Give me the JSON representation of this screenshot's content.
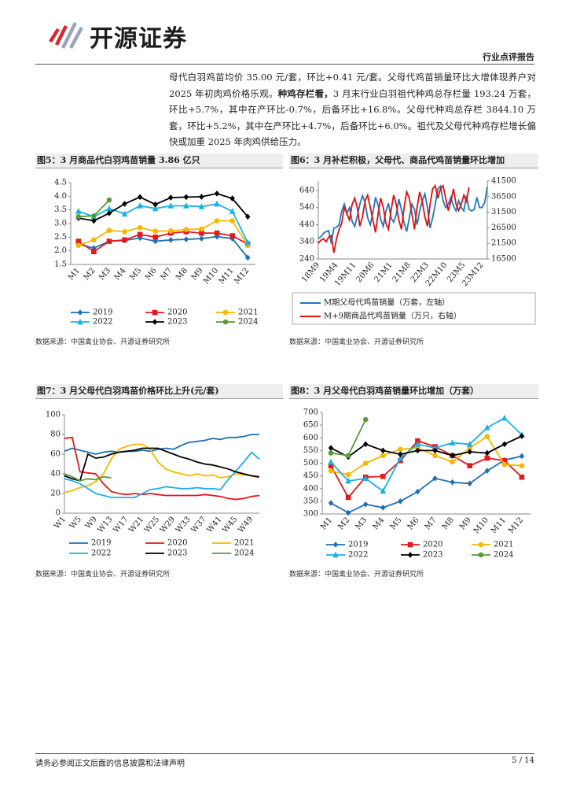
{
  "header": {
    "logo": "开源证券",
    "report_type": "行业点评报告"
  },
  "body": {
    "paragraph": [
      "母代白羽鸡苗均价 35.00 元/套，环比+0.41 元/套。父母代鸡苗销量环比大增体现养户对 2025 年初肉鸡价格乐观。",
      "种鸡存栏看，",
      "3 月末行业白羽祖代种鸡总存栏量 193.24 万套，环比+5.7%，其中在产环比-0.7%，后备环比+16.8%。父母代种鸡总存栏 3844.10 万套，环比+5.2%，其中在产环比+4.7%，后备环比+6.0%。祖代及父母代种鸡存栏增长偏快或加重 2025 年肉鸡供给压力。"
    ]
  },
  "chart_data": [
    {
      "type": "line",
      "title": "图5：3 月商品代白羽鸡苗销量 3.86 亿只",
      "source": "数据来源：中国禽业协会、开源证券研究所",
      "categories": [
        "M1",
        "M2",
        "M3",
        "M4",
        "M5",
        "M6",
        "M7",
        "M8",
        "M9",
        "M10",
        "M11",
        "M12"
      ],
      "ylim": [
        1.5,
        4.5
      ],
      "yticks": [
        1.5,
        {
          "value": 2,
          "label": "2.0"
        },
        2.5,
        {
          "value": 3,
          "label": "3.0"
        },
        3.5,
        {
          "value": 4,
          "label": "4.0"
        },
        4.5
      ],
      "series": [
        {
          "name": "2019",
          "color": "#1f6fb5",
          "marker": "diamond",
          "values": [
            2.25,
            2.1,
            2.35,
            2.38,
            2.47,
            2.35,
            2.4,
            2.42,
            2.45,
            2.52,
            2.45,
            1.75
          ]
        },
        {
          "name": "2020",
          "color": "#e31a1c",
          "marker": "square",
          "values": [
            2.35,
            1.97,
            2.35,
            2.4,
            2.6,
            2.5,
            2.65,
            2.7,
            2.65,
            2.65,
            2.55,
            2.25
          ]
        },
        {
          "name": "2021",
          "color": "#f5b800",
          "marker": "circle",
          "values": [
            2.2,
            2.4,
            2.75,
            2.7,
            2.85,
            2.72,
            2.73,
            2.78,
            2.8,
            3.1,
            3.1,
            2.2
          ]
        },
        {
          "name": "2022",
          "color": "#1bb0e8",
          "marker": "triangle",
          "values": [
            3.45,
            3.25,
            3.55,
            3.35,
            3.65,
            3.55,
            3.65,
            3.65,
            3.62,
            3.72,
            3.45,
            2.3
          ]
        },
        {
          "name": "2023",
          "color": "#000000",
          "marker": "diamond",
          "values": [
            3.2,
            3.1,
            3.38,
            3.72,
            3.97,
            3.7,
            3.95,
            3.97,
            3.98,
            4.1,
            3.92,
            3.25
          ]
        },
        {
          "name": "2024",
          "color": "#5a9a3a",
          "marker": "circle",
          "values": [
            3.25,
            3.28,
            3.86,
            null,
            null,
            null,
            null,
            null,
            null,
            null,
            null,
            null
          ]
        }
      ]
    },
    {
      "type": "line",
      "title": "图6：3 月补栏积极，父母代、商品代鸡苗销量环比增加",
      "source": "数据来源：中国禽业协会、开源证券研究所",
      "categories": [
        "18M9",
        null,
        null,
        null,
        null,
        null,
        null,
        "19M4",
        null,
        null,
        null,
        null,
        null,
        null,
        "19M11",
        null,
        null,
        null,
        null,
        null,
        null,
        "20M6",
        null,
        null,
        null,
        null,
        null,
        null,
        "21M1",
        null,
        null,
        null,
        null,
        null,
        null,
        "21M8",
        null,
        null,
        null,
        null,
        null,
        null,
        "22M3",
        null,
        null,
        null,
        null,
        null,
        null,
        "22M10",
        null,
        null,
        null,
        null,
        null,
        null,
        "23M5",
        null,
        null,
        null,
        null,
        null,
        null,
        "23M12",
        null,
        null
      ],
      "ylim": [
        240,
        695
      ],
      "yticks": [
        240,
        340,
        440,
        540,
        640
      ],
      "y2lim": [
        16500,
        41500
      ],
      "y2ticks": [
        16500,
        21500,
        26500,
        31500,
        36500,
        41500
      ],
      "series": [
        {
          "name": "M期父母代鸡苗销量（万套，左轴）",
          "color": "#1f78c1",
          "values": [
            360,
            370,
            390,
            400,
            405,
            330,
            420,
            425,
            440,
            520,
            560,
            505,
            540,
            460,
            430,
            490,
            560,
            610,
            570,
            480,
            440,
            510,
            600,
            555,
            470,
            430,
            520,
            565,
            480,
            455,
            500,
            590,
            525,
            450,
            400,
            480,
            560,
            530,
            440,
            520,
            580,
            620,
            540,
            420,
            480,
            560,
            650,
            665,
            580,
            540,
            560,
            600,
            550,
            520,
            580,
            540,
            520,
            610,
            530,
            520,
            530,
            600,
            540,
            540,
            570,
            660
          ]
        },
        {
          "name": "M+9期商品代鸡苗销量（万只，右轴）",
          "color": "#e01010",
          "axis": "y2",
          "values": [
            21500,
            22500,
            23000,
            22000,
            23500,
            24000,
            18500,
            23000,
            26000,
            28000,
            33000,
            31000,
            29000,
            34000,
            36000,
            33000,
            27000,
            30000,
            35000,
            37000,
            33000,
            29000,
            25000,
            31000,
            36000,
            33000,
            28000,
            26000,
            32000,
            37000,
            34000,
            29000,
            26000,
            33000,
            38000,
            36000,
            31000,
            26000,
            33000,
            38000,
            35000,
            30000,
            27000,
            34000,
            39000,
            40000,
            36000,
            39000,
            40000,
            36000,
            32000,
            35000,
            39000,
            34000,
            32000,
            34000,
            37000,
            35000,
            39500,
            null,
            null,
            null,
            null,
            null,
            null,
            null
          ]
        }
      ]
    },
    {
      "type": "line",
      "title": "图7：3 月父母代白羽鸡苗价格环比上升(元/套)",
      "source": "数据来源：中国禽业协会、开源证券研究所",
      "categories": [
        "W1",
        null,
        "W5",
        null,
        "W9",
        null,
        "W13",
        null,
        "W17",
        null,
        "W21",
        null,
        "W25",
        null,
        "W29",
        null,
        "W33",
        null,
        "W37",
        null,
        "W41",
        null,
        "W45",
        null,
        "W49",
        null
      ],
      "ylim": [
        0,
        100
      ],
      "yticks": [
        0,
        20,
        40,
        60,
        80,
        100
      ],
      "series": [
        {
          "name": "2019",
          "color": "#1f6fb5",
          "values": [
            63,
            66,
            64,
            62,
            60,
            62,
            63,
            62,
            63,
            63,
            64,
            63,
            65,
            66,
            65,
            69,
            72,
            73,
            74,
            76,
            75,
            77,
            77,
            78,
            80,
            80
          ]
        },
        {
          "name": "2020",
          "color": "#e31a1c",
          "values": [
            76,
            77,
            42,
            41,
            40,
            30,
            22,
            20,
            19,
            20,
            19,
            20,
            19,
            18,
            18,
            18,
            18,
            18,
            19,
            18,
            17,
            15,
            14,
            15,
            17,
            18
          ]
        },
        {
          "name": "2021",
          "color": "#f5b800",
          "values": [
            21,
            23,
            26,
            28,
            32,
            40,
            55,
            65,
            68,
            70,
            70,
            65,
            52,
            45,
            42,
            40,
            38,
            40,
            38,
            39,
            36,
            37,
            40,
            39,
            38,
            36
          ]
        },
        {
          "name": "2022",
          "color": "#1bb0e8",
          "values": [
            35,
            33,
            30,
            25,
            20,
            18,
            16,
            16,
            16,
            16,
            20,
            24,
            25,
            27,
            26,
            25,
            25,
            26,
            25,
            25,
            24,
            34,
            43,
            52,
            62,
            55
          ]
        },
        {
          "name": "2023",
          "color": "#000000",
          "values": [
            38,
            35,
            33,
            60,
            56,
            57,
            60,
            62,
            63,
            64,
            66,
            66,
            66,
            63,
            60,
            57,
            55,
            52,
            50,
            49,
            47,
            45,
            42,
            40,
            38,
            37
          ]
        },
        {
          "name": "2024",
          "color": "#5a9a3a",
          "values": [
            40,
            37,
            33,
            35,
            34,
            37,
            36,
            null,
            null,
            null,
            null,
            null,
            null,
            null,
            null,
            null,
            null,
            null,
            null,
            null,
            null,
            null,
            null,
            null,
            null,
            null
          ]
        }
      ]
    },
    {
      "type": "line",
      "title": "图8：3 月父母代白羽鸡苗销量环比增加（万套）",
      "source": "数据来源：中国禽业协会、开源证券研究所",
      "categories": [
        "M1",
        "M2",
        "M3",
        "M4",
        "M5",
        "M6",
        "M7",
        "M8",
        "M9",
        "M10",
        "M11",
        "M12"
      ],
      "ylim": [
        300,
        700
      ],
      "yticks": [
        300,
        350,
        400,
        450,
        500,
        550,
        600,
        650,
        700
      ],
      "series": [
        {
          "name": "2019",
          "color": "#1f6fb5",
          "marker": "diamond",
          "values": [
            343,
            305,
            338,
            325,
            350,
            388,
            440,
            425,
            420,
            470,
            512,
            528
          ]
        },
        {
          "name": "2020",
          "color": "#e31a1c",
          "marker": "square",
          "values": [
            490,
            365,
            445,
            448,
            510,
            588,
            565,
            530,
            490,
            520,
            510,
            445
          ]
        },
        {
          "name": "2021",
          "color": "#f5b800",
          "marker": "circle",
          "values": [
            470,
            455,
            500,
            530,
            555,
            560,
            530,
            505,
            560,
            605,
            495,
            490
          ]
        },
        {
          "name": "2022",
          "color": "#1bb0e8",
          "marker": "triangle",
          "values": [
            505,
            430,
            440,
            390,
            520,
            575,
            560,
            580,
            575,
            640,
            678,
            612
          ]
        },
        {
          "name": "2023",
          "color": "#000000",
          "marker": "diamond",
          "values": [
            560,
            525,
            575,
            550,
            535,
            550,
            550,
            530,
            545,
            540,
            575,
            607
          ]
        },
        {
          "name": "2024",
          "color": "#5a9a3a",
          "marker": "circle",
          "values": [
            540,
            530,
            672,
            null,
            null,
            null,
            null,
            null,
            null,
            null,
            null,
            null
          ]
        }
      ]
    }
  ],
  "footer": {
    "disclaimer": "请务必参阅正文后面的信息披露和法律声明",
    "page": "5 / 14"
  }
}
